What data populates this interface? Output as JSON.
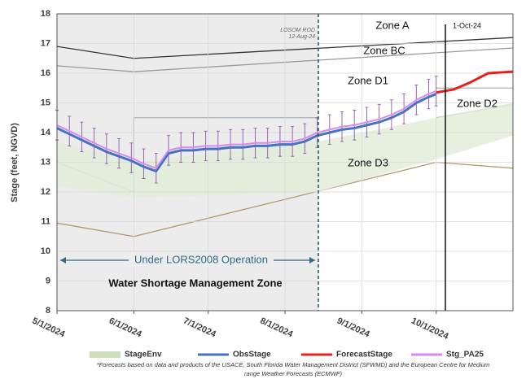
{
  "chart_data": {
    "type": "line",
    "y_label": "Stage (feet, NGVD)",
    "xlim": [
      "5/1/2024",
      "11/1/2024"
    ],
    "xticks": [
      "5/1/2024",
      "6/1/2024",
      "7/1/2024",
      "8/1/2024",
      "9/1/2024",
      "10/1/2024"
    ],
    "ylim": [
      8,
      18
    ],
    "yticks": [
      8,
      9,
      10,
      11,
      12,
      13,
      14,
      15,
      16,
      17,
      18
    ],
    "grid": true,
    "annotations": [
      "Zone A",
      "Zone BC",
      "Zone D1",
      "Zone D2",
      "Zone D3",
      "LOSOM ROD",
      "12-Aug-24",
      "1-Oct-24",
      "Under LORS2008 Operation",
      "Water Shortage Management Zone"
    ],
    "notes": [
      "*Forecasts based on data and products of the USACE, South Florida Water Management District (SFWMD) and the European Centre for Medium",
      "range Weather Forecasts (ECMWF)"
    ],
    "reference_lines": [
      {
        "color": "#333333",
        "x": [
          "5/1/2024",
          "6/1/2024",
          "11/1/2024"
        ],
        "values": [
          16.9,
          16.5,
          17.2
        ]
      },
      {
        "color": "#9a9a9a",
        "x": [
          "5/1/2024",
          "6/1/2024",
          "11/1/2024"
        ],
        "values": [
          16.25,
          16.05,
          16.85
        ]
      },
      {
        "color": "#b09a6e",
        "x": [
          "5/1/2024",
          "6/1/2024",
          "10/1/2024",
          "11/1/2024"
        ],
        "values": [
          10.95,
          10.5,
          13.0,
          12.8
        ]
      },
      {
        "color": "#a8b0b8",
        "x": [
          "5/1/2024",
          "6/1/2024",
          "6/1/2024",
          "8/14/2024"
        ],
        "values": [
          13.0,
          12.0,
          14.5,
          14.5
        ]
      },
      {
        "color": "#a8b0b8",
        "x": [
          "10/1/2024",
          "11/1/2024"
        ],
        "values": [
          15.5,
          15.5
        ]
      },
      {
        "color": "#a8b0b8",
        "x": [
          "10/1/2024",
          "11/1/2024"
        ],
        "values": [
          14.5,
          14.95
        ]
      }
    ],
    "series": [
      {
        "name": "StageEnv",
        "type": "area",
        "color": "#e3ecd9",
        "x": [
          "5/1/2024",
          "6/1/2024",
          "8/14/2024",
          "10/1/2024",
          "11/1/2024"
        ],
        "values": [
          13.7,
          13.0,
          13.7,
          14.5,
          15.0
        ],
        "lower": [
          12.2,
          11.8,
          12.0,
          13.1,
          13.9
        ]
      },
      {
        "name": "ObsStage",
        "type": "line",
        "color": "#4472c4",
        "x": [
          "5/1/2024",
          "5/6/2024",
          "5/11/2024",
          "5/16/2024",
          "5/21/2024",
          "5/26/2024",
          "5/31/2024",
          "6/5/2024",
          "6/10/2024",
          "6/15/2024",
          "6/20/2024",
          "6/25/2024",
          "6/30/2024",
          "7/5/2024",
          "7/10/2024",
          "7/15/2024",
          "7/20/2024",
          "7/25/2024",
          "7/30/2024",
          "8/4/2024",
          "8/9/2024",
          "8/14/2024",
          "8/19/2024",
          "8/24/2024",
          "8/29/2024",
          "9/3/2024",
          "9/8/2024",
          "9/13/2024",
          "9/18/2024",
          "9/23/2024",
          "9/28/2024",
          "10/1/2024"
        ],
        "values": [
          14.15,
          13.95,
          13.75,
          13.55,
          13.35,
          13.2,
          13.05,
          12.85,
          12.7,
          13.3,
          13.4,
          13.4,
          13.45,
          13.45,
          13.5,
          13.5,
          13.55,
          13.55,
          13.6,
          13.6,
          13.7,
          13.9,
          14.0,
          14.1,
          14.15,
          14.25,
          14.35,
          14.5,
          14.7,
          15.0,
          15.2,
          15.3
        ]
      },
      {
        "name": "ForecastStage",
        "type": "line",
        "color": "#e8201c",
        "x": [
          "10/1/2024",
          "10/8/2024",
          "10/15/2024",
          "10/22/2024",
          "11/1/2024"
        ],
        "values": [
          15.35,
          15.45,
          15.7,
          16.0,
          16.05
        ]
      },
      {
        "name": "Stg_PA25",
        "type": "line",
        "color": "#d58cf0",
        "error_color": "#8a5aa8",
        "x": [
          "5/1/2024",
          "5/6/2024",
          "5/11/2024",
          "5/16/2024",
          "5/21/2024",
          "5/26/2024",
          "5/31/2024",
          "6/5/2024",
          "6/10/2024",
          "6/15/2024",
          "6/20/2024",
          "6/25/2024",
          "6/30/2024",
          "7/5/2024",
          "7/10/2024",
          "7/15/2024",
          "7/20/2024",
          "7/25/2024",
          "7/30/2024",
          "8/4/2024",
          "8/9/2024",
          "8/14/2024",
          "8/19/2024",
          "8/24/2024",
          "8/29/2024",
          "9/3/2024",
          "9/8/2024",
          "9/13/2024",
          "9/18/2024",
          "9/23/2024",
          "9/28/2024",
          "10/1/2024"
        ],
        "values": [
          14.25,
          14.05,
          13.85,
          13.65,
          13.45,
          13.3,
          13.15,
          12.95,
          12.8,
          13.4,
          13.5,
          13.5,
          13.55,
          13.55,
          13.6,
          13.6,
          13.65,
          13.65,
          13.7,
          13.7,
          13.8,
          14.0,
          14.1,
          14.2,
          14.25,
          14.35,
          14.45,
          14.6,
          14.8,
          15.1,
          15.3,
          15.4
        ],
        "errors": [
          0.5,
          0.5,
          0.5,
          0.5,
          0.5,
          0.5,
          0.5,
          0.5,
          0.5,
          0.5,
          0.5,
          0.5,
          0.5,
          0.5,
          0.5,
          0.5,
          0.5,
          0.5,
          0.5,
          0.5,
          0.5,
          0.5,
          0.5,
          0.5,
          0.5,
          0.5,
          0.5,
          0.5,
          0.5,
          0.5,
          0.5,
          0.5
        ]
      }
    ]
  }
}
